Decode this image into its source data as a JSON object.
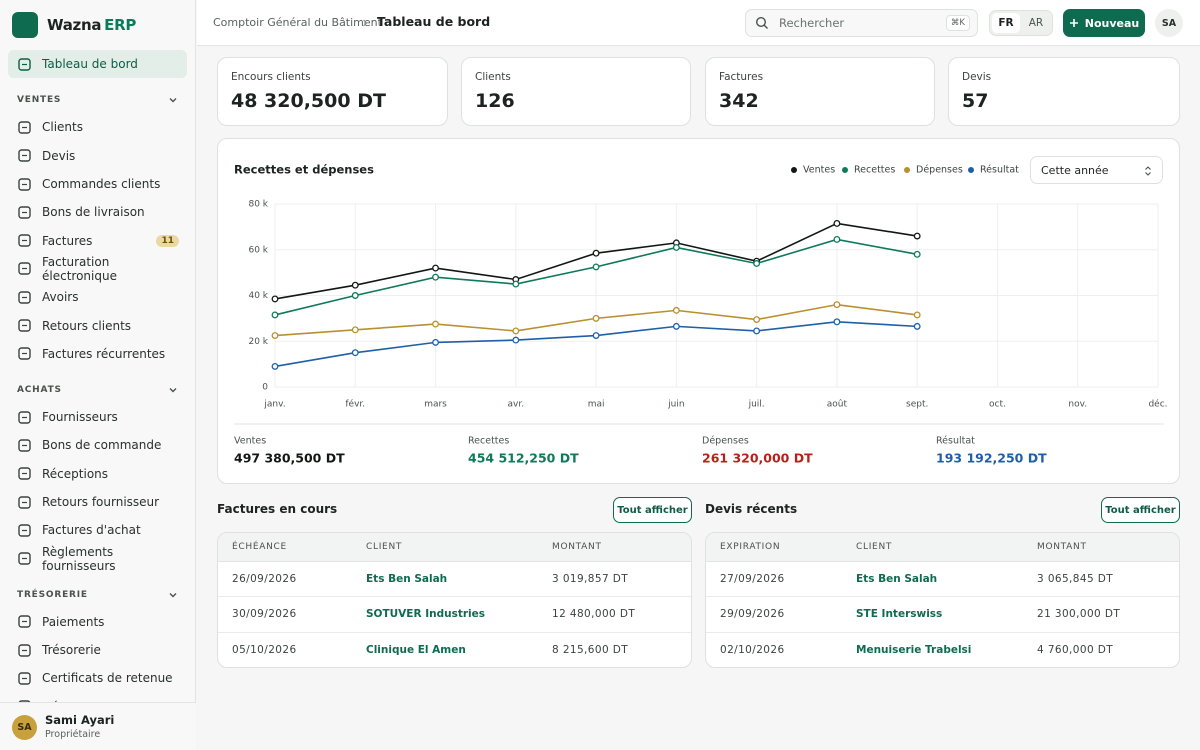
{
  "brand": {
    "name": "Wazna",
    "suffix": "ERP"
  },
  "nav": {
    "home": "Tableau de bord",
    "sections": [
      {
        "title": "VENTES",
        "items": [
          {
            "label": "Clients"
          },
          {
            "label": "Devis"
          },
          {
            "label": "Commandes clients"
          },
          {
            "label": "Bons de livraison"
          },
          {
            "label": "Factures",
            "badge": 11
          },
          {
            "label": "Facturation électronique"
          },
          {
            "label": "Avoirs"
          },
          {
            "label": "Retours clients"
          },
          {
            "label": "Factures récurrentes"
          }
        ]
      },
      {
        "title": "ACHATS",
        "items": [
          {
            "label": "Fournisseurs"
          },
          {
            "label": "Bons de commande"
          },
          {
            "label": "Réceptions"
          },
          {
            "label": "Retours fournisseur"
          },
          {
            "label": "Factures d'achat"
          },
          {
            "label": "Règlements fournisseurs"
          }
        ]
      },
      {
        "title": "TRÉSORERIE",
        "items": [
          {
            "label": "Paiements"
          },
          {
            "label": "Trésorerie"
          },
          {
            "label": "Certificats de retenue"
          },
          {
            "label": "Dépenses"
          }
        ]
      }
    ]
  },
  "user": {
    "initials": "SA",
    "name": "Sami Ayari",
    "role": "Propriétaire"
  },
  "topbar": {
    "breadcrumb": [
      "Comptoir Général du Bâtiment",
      "Tableau de bord"
    ],
    "search": "Rechercher",
    "shortcut": "⌘K",
    "languages": [
      "FR",
      "AR"
    ],
    "new": "Nouveau",
    "avatar": "SA"
  },
  "kpis": [
    {
      "label": "Encours clients",
      "value": "48 320,500 DT"
    },
    {
      "label": "Clients",
      "value": "126"
    },
    {
      "label": "Factures",
      "value": "342"
    },
    {
      "label": "Devis",
      "value": "57"
    }
  ],
  "chart_data": {
    "type": "line",
    "title": "Recettes et dépenses",
    "select": "Cette année",
    "categories": [
      "janv.",
      "févr.",
      "mars",
      "avr.",
      "mai",
      "juin",
      "juil.",
      "août",
      "sept.",
      "oct.",
      "nov.",
      "déc."
    ],
    "series": [
      {
        "name": "Ventes",
        "color": "#111814",
        "values": [
          38500,
          44500,
          52000,
          47000,
          58500,
          63000,
          55000,
          71500,
          66000,
          null,
          null,
          null
        ]
      },
      {
        "name": "Recettes",
        "color": "#0f7a5a",
        "values": [
          31500,
          40000,
          48000,
          45000,
          52500,
          61000,
          54000,
          64500,
          58000,
          null,
          null,
          null
        ]
      },
      {
        "name": "Dépenses",
        "color": "#b8902f",
        "values": [
          22500,
          25000,
          27500,
          24500,
          30000,
          33500,
          29500,
          36000,
          31500,
          null,
          null,
          null
        ]
      },
      {
        "name": "Résultat",
        "color": "#1f5fa8",
        "values": [
          9000,
          15000,
          19500,
          20500,
          22500,
          26500,
          24500,
          28500,
          26500,
          null,
          null,
          null
        ]
      }
    ],
    "ylim": [
      0,
      80000
    ],
    "yticks": [
      0,
      {
        "value": 20000,
        "label": "20 k"
      },
      {
        "value": 40000,
        "label": "40 k"
      },
      {
        "value": 60000,
        "label": "60 k"
      },
      {
        "value": 80000,
        "label": "80 k"
      }
    ],
    "grid": true,
    "summary": [
      {
        "label": "Ventes",
        "value": "497 380,500 DT",
        "color": "#111814"
      },
      {
        "label": "Recettes",
        "value": "454 512,250 DT",
        "color": "#0f7a5a"
      },
      {
        "label": "Dépenses",
        "value": "261 320,000 DT",
        "color": "#b42318"
      },
      {
        "label": "Résultat",
        "value": "193 192,250 DT",
        "color": "#1f5fa8"
      }
    ]
  },
  "tables": [
    {
      "title": "Factures en cours",
      "action": "Tout afficher",
      "columns": [
        "ÉCHÉANCE",
        "CLIENT",
        "MONTANT"
      ],
      "rows": [
        [
          "26/09/2026",
          "Ets Ben Salah",
          "3 019,857 DT"
        ],
        [
          "30/09/2026",
          "SOTUVER Industries",
          "12 480,000 DT"
        ],
        [
          "05/10/2026",
          "Clinique El Amen",
          "8 215,600 DT"
        ]
      ]
    },
    {
      "title": "Devis récents",
      "action": "Tout afficher",
      "columns": [
        "EXPIRATION",
        "CLIENT",
        "MONTANT"
      ],
      "rows": [
        [
          "27/09/2026",
          "Ets Ben Salah",
          "3 065,845 DT"
        ],
        [
          "29/09/2026",
          "STE Interswiss",
          "21 300,000 DT"
        ],
        [
          "02/10/2026",
          "Menuiserie Trabelsi",
          "4 760,000 DT"
        ]
      ]
    }
  ]
}
